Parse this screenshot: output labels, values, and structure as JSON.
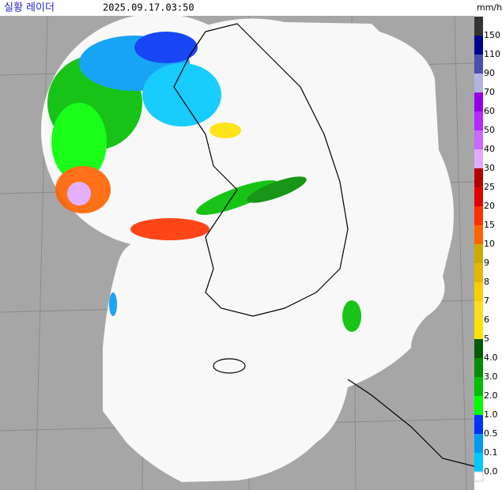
{
  "header": {
    "title": "실황 레이더",
    "timestamp": "2025.09.17.03:50"
  },
  "legend": {
    "unit": "mm/h",
    "labels": [
      "150",
      "110",
      "90",
      "70",
      "60",
      "50",
      "40",
      "30",
      "25",
      "20",
      "15",
      "10",
      "9",
      "8",
      "7",
      "6",
      "5",
      "4.0",
      "3.0",
      "2.0",
      "1.0",
      "0.5",
      "0.1",
      "0.0"
    ],
    "colors": [
      "#333333",
      "#000390",
      "#4c4eb1",
      "#b3b4de",
      "#9300e4",
      "#b329ff",
      "#c969ff",
      "#e0a9ff",
      "#b40000",
      "#e00000",
      "#ff3200",
      "#ff6300",
      "#ccaa00",
      "#e0b900",
      "#f9cd00",
      "#ffdc1f",
      "#ffe100",
      "#005a00",
      "#008c00",
      "#00be00",
      "#00ff00",
      "#0033f5",
      "#009bf5",
      "#00c8ff"
    ]
  }
}
